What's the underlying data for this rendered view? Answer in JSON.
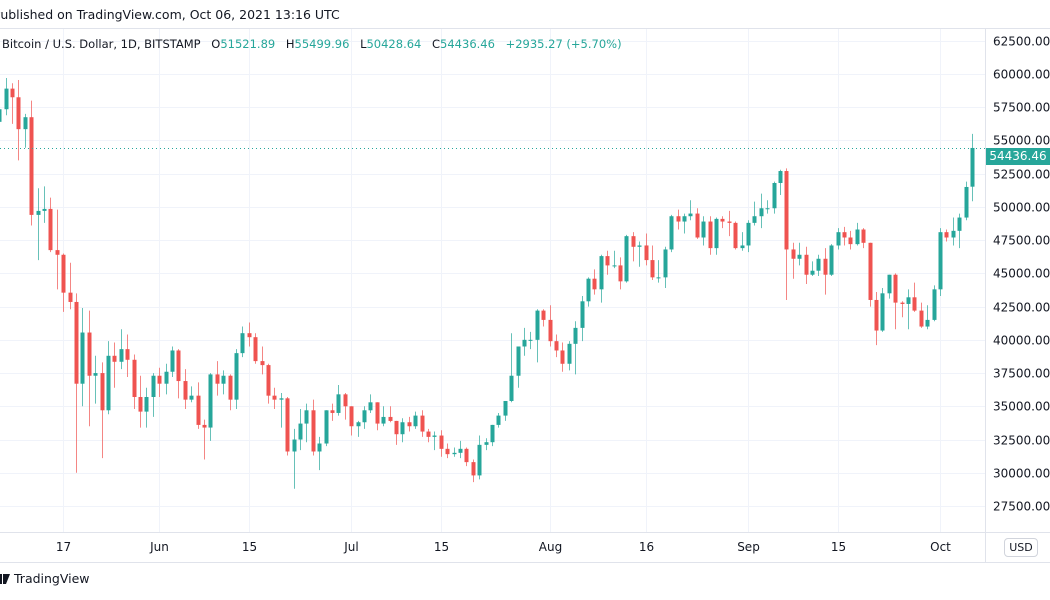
{
  "header": {
    "published": "Published on TradingView.com, Oct 06, 2021 13:16 UTC"
  },
  "legend": {
    "symbol": "Bitcoin / U.S. Dollar, 1D, BITSTAMP",
    "o_label": "O",
    "o_value": "51521.89",
    "h_label": "H",
    "h_value": "55499.96",
    "l_label": "L",
    "l_value": "50428.64",
    "c_label": "C",
    "c_value": "54436.46",
    "change": "+2935.27 (+5.70%)"
  },
  "price_axis": {
    "currency": "USD",
    "last_price": "54436.46"
  },
  "footer": {
    "brand": "TradingView",
    "logo_icon": "tradingview-logo-icon"
  },
  "colors": {
    "up": "#26a69a",
    "down": "#ef5350",
    "grid": "#f0f3fa",
    "last_price_line": "#26a69a"
  },
  "chart_data": {
    "type": "candlestick",
    "title": "",
    "fields": [
      "date",
      "open",
      "high",
      "low",
      "close"
    ],
    "ylim": [
      25500,
      63000
    ],
    "grid": true,
    "yticks": [
      "27500.00",
      "30000.00",
      "32500.00",
      "35000.00",
      "37500.00",
      "40000.00",
      "42500.00",
      "45000.00",
      "47500.00",
      "50000.00",
      "52500.00",
      "55000.00",
      "57500.00",
      "60000.00",
      "62500.00"
    ],
    "xticks": [
      {
        "label": "17",
        "date": "2021-05-17"
      },
      {
        "label": "Jun",
        "date": "2021-06-01"
      },
      {
        "label": "15",
        "date": "2021-06-15"
      },
      {
        "label": "Jul",
        "date": "2021-07-01"
      },
      {
        "label": "15",
        "date": "2021-07-15"
      },
      {
        "label": "Aug",
        "date": "2021-08-01"
      },
      {
        "label": "16",
        "date": "2021-08-16"
      },
      {
        "label": "Sep",
        "date": "2021-09-01"
      },
      {
        "label": "15",
        "date": "2021-09-15"
      },
      {
        "label": "Oct",
        "date": "2021-10-01"
      }
    ],
    "candles": [
      [
        "2021-05-07",
        56400,
        58650,
        55250,
        57350
      ],
      [
        "2021-05-08",
        57350,
        59700,
        56900,
        58900
      ],
      [
        "2021-05-09",
        58900,
        59300,
        56250,
        58250
      ],
      [
        "2021-05-10",
        58250,
        59550,
        53500,
        55850
      ],
      [
        "2021-05-11",
        55850,
        57000,
        54450,
        56750
      ],
      [
        "2021-05-12",
        56750,
        58000,
        48600,
        49400
      ],
      [
        "2021-05-13",
        49400,
        51400,
        46000,
        49700
      ],
      [
        "2021-05-14",
        49700,
        51550,
        48800,
        49850
      ],
      [
        "2021-05-15",
        49850,
        50700,
        46600,
        46750
      ],
      [
        "2021-05-16",
        46750,
        49800,
        43800,
        46400
      ],
      [
        "2021-05-17",
        46400,
        46500,
        42100,
        43550
      ],
      [
        "2021-05-18",
        43550,
        45800,
        42300,
        42850
      ],
      [
        "2021-05-19",
        42850,
        43500,
        30000,
        36700
      ],
      [
        "2021-05-20",
        36700,
        42400,
        35000,
        40550
      ],
      [
        "2021-05-21",
        40550,
        42200,
        33500,
        37300
      ],
      [
        "2021-05-22",
        37300,
        38800,
        35200,
        37500
      ],
      [
        "2021-05-23",
        37500,
        38300,
        31100,
        34700
      ],
      [
        "2021-05-24",
        34700,
        39900,
        34400,
        38800
      ],
      [
        "2021-05-25",
        38800,
        39800,
        36400,
        38350
      ],
      [
        "2021-05-26",
        38350,
        40800,
        37800,
        39300
      ],
      [
        "2021-05-27",
        39300,
        40400,
        37200,
        38500
      ],
      [
        "2021-05-28",
        38500,
        38900,
        34800,
        35700
      ],
      [
        "2021-05-29",
        35700,
        37300,
        33400,
        34600
      ],
      [
        "2021-05-30",
        34600,
        36400,
        33400,
        35700
      ],
      [
        "2021-05-31",
        35700,
        37500,
        34200,
        37300
      ],
      [
        "2021-06-01",
        37300,
        37900,
        35700,
        36700
      ],
      [
        "2021-06-02",
        36700,
        38200,
        35900,
        37600
      ],
      [
        "2021-06-03",
        37600,
        39500,
        37200,
        39200
      ],
      [
        "2021-06-04",
        39200,
        39300,
        35600,
        36900
      ],
      [
        "2021-06-05",
        36900,
        37800,
        34800,
        35500
      ],
      [
        "2021-06-06",
        35500,
        36500,
        35300,
        35800
      ],
      [
        "2021-06-07",
        35800,
        36800,
        33300,
        33600
      ],
      [
        "2021-06-08",
        33600,
        34000,
        31000,
        33400
      ],
      [
        "2021-06-09",
        33400,
        37500,
        32400,
        37400
      ],
      [
        "2021-06-10",
        37400,
        38400,
        35800,
        36700
      ],
      [
        "2021-06-11",
        36700,
        37700,
        35900,
        37300
      ],
      [
        "2021-06-12",
        37300,
        37400,
        34700,
        35500
      ],
      [
        "2021-06-13",
        35500,
        39300,
        34800,
        39000
      ],
      [
        "2021-06-14",
        39000,
        41000,
        38700,
        40500
      ],
      [
        "2021-06-15",
        40500,
        41300,
        39500,
        40200
      ],
      [
        "2021-06-16",
        40200,
        40500,
        38200,
        38400
      ],
      [
        "2021-06-17",
        38400,
        39500,
        37400,
        38100
      ],
      [
        "2021-06-18",
        38100,
        38200,
        35200,
        35800
      ],
      [
        "2021-06-19",
        35800,
        36400,
        34800,
        35500
      ],
      [
        "2021-06-20",
        35500,
        36000,
        33400,
        35600
      ],
      [
        "2021-06-21",
        35600,
        35700,
        31300,
        31600
      ],
      [
        "2021-06-22",
        31600,
        33300,
        28800,
        32500
      ],
      [
        "2021-06-23",
        32500,
        34800,
        31700,
        33700
      ],
      [
        "2021-06-24",
        33700,
        35200,
        32300,
        34700
      ],
      [
        "2021-06-25",
        34700,
        35500,
        31300,
        31600
      ],
      [
        "2021-06-26",
        31600,
        32700,
        30200,
        32200
      ],
      [
        "2021-06-27",
        32200,
        34700,
        32000,
        34700
      ],
      [
        "2021-06-28",
        34700,
        35200,
        33900,
        34500
      ],
      [
        "2021-06-29",
        34500,
        36600,
        34300,
        35900
      ],
      [
        "2021-06-30",
        35900,
        36000,
        34000,
        35000
      ],
      [
        "2021-07-01",
        35000,
        35000,
        32800,
        33500
      ],
      [
        "2021-07-02",
        33500,
        33900,
        32700,
        33800
      ],
      [
        "2021-07-03",
        33800,
        35000,
        33300,
        34700
      ],
      [
        "2021-07-04",
        34700,
        35900,
        34500,
        35300
      ],
      [
        "2021-07-05",
        35300,
        35300,
        33200,
        33700
      ],
      [
        "2021-07-06",
        33700,
        35000,
        33500,
        34200
      ],
      [
        "2021-07-07",
        34200,
        35000,
        33800,
        33900
      ],
      [
        "2021-07-08",
        33900,
        33900,
        32100,
        32900
      ],
      [
        "2021-07-09",
        32900,
        34100,
        32300,
        33800
      ],
      [
        "2021-07-10",
        33800,
        34200,
        33100,
        33500
      ],
      [
        "2021-07-11",
        33500,
        34600,
        33300,
        34300
      ],
      [
        "2021-07-12",
        34300,
        34700,
        32700,
        33100
      ],
      [
        "2021-07-13",
        33100,
        33300,
        32300,
        32700
      ],
      [
        "2021-07-14",
        32700,
        33100,
        31700,
        32800
      ],
      [
        "2021-07-15",
        32800,
        33200,
        31200,
        31800
      ],
      [
        "2021-07-16",
        31800,
        32200,
        31100,
        31400
      ],
      [
        "2021-07-17",
        31400,
        31900,
        31200,
        31500
      ],
      [
        "2021-07-18",
        31500,
        32400,
        31100,
        31800
      ],
      [
        "2021-07-19",
        31800,
        31900,
        30500,
        30800
      ],
      [
        "2021-07-20",
        30800,
        31000,
        29300,
        29800
      ],
      [
        "2021-07-21",
        29800,
        32800,
        29500,
        32100
      ],
      [
        "2021-07-22",
        32100,
        32600,
        31700,
        32300
      ],
      [
        "2021-07-23",
        32300,
        33600,
        32000,
        33600
      ],
      [
        "2021-07-24",
        33600,
        34500,
        33400,
        34300
      ],
      [
        "2021-07-25",
        34300,
        35400,
        33900,
        35400
      ],
      [
        "2021-07-26",
        35400,
        40500,
        35300,
        37300
      ],
      [
        "2021-07-27",
        37300,
        39500,
        36400,
        39500
      ],
      [
        "2021-07-28",
        39500,
        40900,
        38800,
        40000
      ],
      [
        "2021-07-29",
        40000,
        40600,
        39300,
        40000
      ],
      [
        "2021-07-30",
        40000,
        42300,
        38300,
        42200
      ],
      [
        "2021-07-31",
        42200,
        42300,
        41000,
        41500
      ],
      [
        "2021-08-01",
        41500,
        42600,
        39500,
        39900
      ],
      [
        "2021-08-02",
        39900,
        40400,
        38700,
        39200
      ],
      [
        "2021-08-03",
        39200,
        39800,
        37600,
        38200
      ],
      [
        "2021-08-04",
        38200,
        39900,
        37700,
        39700
      ],
      [
        "2021-08-05",
        39700,
        41400,
        37400,
        40900
      ],
      [
        "2021-08-06",
        40900,
        43300,
        39900,
        42900
      ],
      [
        "2021-08-07",
        42900,
        44700,
        42500,
        44600
      ],
      [
        "2021-08-08",
        44600,
        45300,
        43400,
        43800
      ],
      [
        "2021-08-09",
        43800,
        46400,
        42800,
        46300
      ],
      [
        "2021-08-10",
        46300,
        46700,
        44900,
        45600
      ],
      [
        "2021-08-11",
        45600,
        46700,
        45400,
        45600
      ],
      [
        "2021-08-12",
        45600,
        46200,
        43800,
        44400
      ],
      [
        "2021-08-13",
        44400,
        47900,
        44300,
        47800
      ],
      [
        "2021-08-14",
        47800,
        48100,
        45900,
        47000
      ],
      [
        "2021-08-15",
        47000,
        47400,
        45500,
        47100
      ],
      [
        "2021-08-16",
        47100,
        48000,
        45600,
        46000
      ],
      [
        "2021-08-17",
        46000,
        47100,
        44500,
        44700
      ],
      [
        "2021-08-18",
        44700,
        46000,
        44300,
        44700
      ],
      [
        "2021-08-19",
        44700,
        47000,
        43900,
        46800
      ],
      [
        "2021-08-20",
        46800,
        49400,
        46600,
        49300
      ],
      [
        "2021-08-21",
        49300,
        49800,
        48300,
        48900
      ],
      [
        "2021-08-22",
        48900,
        49500,
        48000,
        49300
      ],
      [
        "2021-08-23",
        49300,
        50500,
        49000,
        49500
      ],
      [
        "2021-08-24",
        49500,
        49900,
        47600,
        47700
      ],
      [
        "2021-08-25",
        47700,
        49300,
        47100,
        48900
      ],
      [
        "2021-08-26",
        48900,
        49300,
        46400,
        46900
      ],
      [
        "2021-08-27",
        46900,
        49200,
        46400,
        49100
      ],
      [
        "2021-08-28",
        49100,
        49300,
        48400,
        48900
      ],
      [
        "2021-08-29",
        48900,
        49700,
        47800,
        48800
      ],
      [
        "2021-08-30",
        48800,
        48900,
        46800,
        46900
      ],
      [
        "2021-08-31",
        46900,
        48100,
        46700,
        47100
      ],
      [
        "2021-09-01",
        47100,
        49000,
        46600,
        48800
      ],
      [
        "2021-09-02",
        48800,
        50400,
        48600,
        49300
      ],
      [
        "2021-09-03",
        49300,
        51000,
        48400,
        49900
      ],
      [
        "2021-09-04",
        49900,
        50500,
        49500,
        49900
      ],
      [
        "2021-09-05",
        49900,
        51900,
        49500,
        51800
      ],
      [
        "2021-09-06",
        51800,
        52800,
        50900,
        52700
      ],
      [
        "2021-09-07",
        52700,
        52900,
        43000,
        46800
      ],
      [
        "2021-09-08",
        46800,
        47300,
        44600,
        46100
      ],
      [
        "2021-09-09",
        46100,
        47300,
        45600,
        46400
      ],
      [
        "2021-09-10",
        46400,
        47000,
        44200,
        44900
      ],
      [
        "2021-09-11",
        44900,
        45900,
        44800,
        45200
      ],
      [
        "2021-09-12",
        45200,
        46400,
        44800,
        46100
      ],
      [
        "2021-09-13",
        46100,
        46900,
        43400,
        44900
      ],
      [
        "2021-09-14",
        44900,
        47200,
        44800,
        47100
      ],
      [
        "2021-09-15",
        47100,
        48400,
        46800,
        48100
      ],
      [
        "2021-09-16",
        48100,
        48500,
        47100,
        47700
      ],
      [
        "2021-09-17",
        47700,
        48200,
        46800,
        47200
      ],
      [
        "2021-09-18",
        47200,
        48800,
        47100,
        48300
      ],
      [
        "2021-09-19",
        48300,
        48400,
        46900,
        47300
      ],
      [
        "2021-09-20",
        47300,
        47300,
        42500,
        43000
      ],
      [
        "2021-09-21",
        43000,
        43600,
        39600,
        40700
      ],
      [
        "2021-09-22",
        40700,
        43900,
        40600,
        43500
      ],
      [
        "2021-09-23",
        43500,
        44900,
        43100,
        44900
      ],
      [
        "2021-09-24",
        44900,
        45000,
        40800,
        42800
      ],
      [
        "2021-09-25",
        42800,
        42900,
        41700,
        42700
      ],
      [
        "2021-09-26",
        42700,
        43800,
        40800,
        43200
      ],
      [
        "2021-09-27",
        43200,
        44300,
        42100,
        42200
      ],
      [
        "2021-09-28",
        42200,
        42800,
        40900,
        41000
      ],
      [
        "2021-09-29",
        41000,
        42600,
        40800,
        41500
      ],
      [
        "2021-09-30",
        41500,
        44100,
        41400,
        43800
      ],
      [
        "2021-10-01",
        43800,
        48400,
        43300,
        48100
      ],
      [
        "2021-10-02",
        48100,
        48300,
        47400,
        47700
      ],
      [
        "2021-10-03",
        47700,
        49200,
        47100,
        48200
      ],
      [
        "2021-10-04",
        48200,
        49500,
        46900,
        49200
      ],
      [
        "2021-10-05",
        49200,
        51900,
        49000,
        51501.19
      ],
      [
        "2021-10-06",
        51521.89,
        55499.96,
        50428.64,
        54436.46
      ]
    ]
  }
}
